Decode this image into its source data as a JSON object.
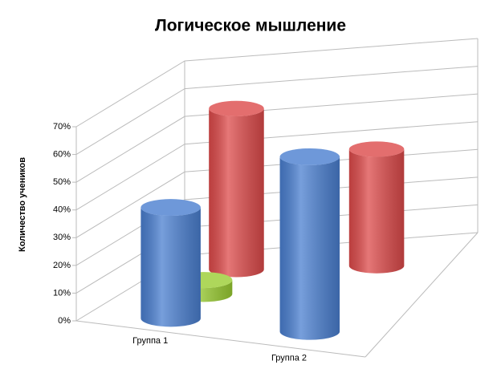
{
  "chart_data": {
    "type": "cylinder3d",
    "title": "Логическое мышление",
    "y_label": "Количество учеников",
    "categories": [
      "Группа 1",
      "Группа 2"
    ],
    "series": [
      {
        "color": "#4a7fd0",
        "values": [
          40,
          63
        ]
      },
      {
        "color": "#9acd32",
        "values": [
          5,
          0
        ]
      },
      {
        "color": "#dd4a4a",
        "values": [
          58,
          42
        ]
      }
    ],
    "ylim": [
      0,
      70
    ],
    "yticks": [
      {
        "value": 0,
        "label": "0%"
      },
      {
        "value": 10,
        "label": "10%"
      },
      {
        "value": 20,
        "label": "20%"
      },
      {
        "value": 30,
        "label": "30%"
      },
      {
        "value": 40,
        "label": "40%"
      },
      {
        "value": 50,
        "label": "50%"
      },
      {
        "value": 60,
        "label": "60%"
      },
      {
        "value": 70,
        "label": "70%"
      }
    ],
    "grid": true
  }
}
